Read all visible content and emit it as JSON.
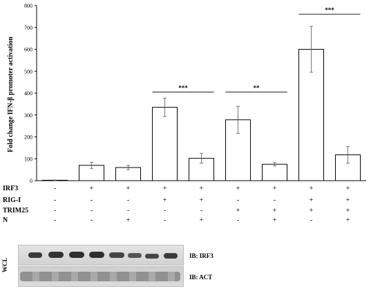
{
  "chart_data": {
    "type": "bar",
    "ylabel": "Fold change IFN-β promoter activation",
    "ylim": [
      0,
      800
    ],
    "yticks": [
      0,
      100,
      200,
      300,
      400,
      500,
      600,
      700,
      800
    ],
    "grid": false,
    "values": [
      2,
      70,
      60,
      335,
      102,
      278,
      75,
      600,
      118
    ],
    "errors": [
      1,
      14,
      10,
      42,
      22,
      62,
      8,
      105,
      38
    ],
    "significance": [
      {
        "from": 3,
        "to": 4,
        "label": "***",
        "y": 405
      },
      {
        "from": 5,
        "to": 6,
        "label": "**",
        "y": 405
      },
      {
        "from": 7,
        "to": 8,
        "label": "***",
        "y": 760
      }
    ]
  },
  "conditions": {
    "rows": [
      {
        "label": "IRF3",
        "signs": [
          "-",
          "+",
          "+",
          "+",
          "+",
          "+",
          "+",
          "+",
          "+"
        ]
      },
      {
        "label": "RIG-I",
        "signs": [
          "-",
          "-",
          "-",
          "+",
          "+",
          "-",
          "-",
          "+",
          "+"
        ]
      },
      {
        "label": "TRIM25",
        "signs": [
          "-",
          "-",
          "-",
          "-",
          "-",
          "+",
          "+",
          "+",
          "+"
        ]
      },
      {
        "label": "N",
        "signs": [
          "-",
          "-",
          "+",
          "-",
          "+",
          "-",
          "+",
          "-",
          "+"
        ]
      }
    ]
  },
  "blot": {
    "side_label": "WCL",
    "ib_labels": [
      "IB: IRF3",
      "IB: ACT"
    ]
  }
}
